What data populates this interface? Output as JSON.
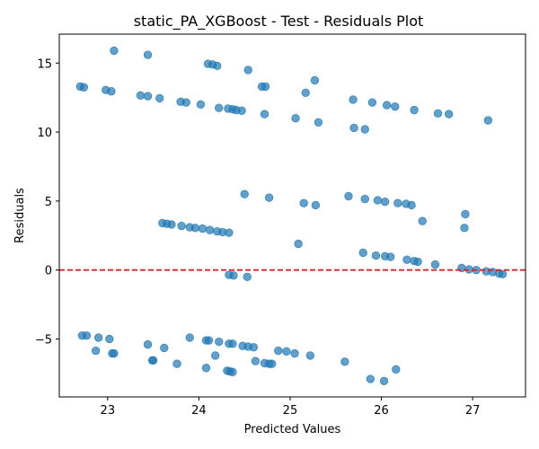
{
  "chart_data": {
    "type": "scatter",
    "title": "static_PA_XGBoost - Test - Residuals Plot",
    "xlabel": "Predicted Values",
    "ylabel": "Residuals",
    "xlim": [
      22.47,
      27.58
    ],
    "ylim": [
      -9.2,
      17.1
    ],
    "xticks": [
      23,
      24,
      25,
      26,
      27
    ],
    "yticks": [
      -5,
      0,
      5,
      10,
      15
    ],
    "grid": false,
    "point_color": "#1f77b4",
    "reference_line": {
      "y": 0,
      "color": "#d62728",
      "style": "dashed"
    },
    "points": [
      [
        23.07,
        15.9
      ],
      [
        23.44,
        15.6
      ],
      [
        24.1,
        14.95
      ],
      [
        24.15,
        14.9
      ],
      [
        24.2,
        14.8
      ],
      [
        24.54,
        14.5
      ],
      [
        25.27,
        13.75
      ],
      [
        22.7,
        13.3
      ],
      [
        22.74,
        13.25
      ],
      [
        24.69,
        13.3
      ],
      [
        24.73,
        13.3
      ],
      [
        22.98,
        13.05
      ],
      [
        23.04,
        12.95
      ],
      [
        25.17,
        12.85
      ],
      [
        23.36,
        12.65
      ],
      [
        23.44,
        12.6
      ],
      [
        23.57,
        12.45
      ],
      [
        23.8,
        12.2
      ],
      [
        23.86,
        12.15
      ],
      [
        24.02,
        12.0
      ],
      [
        24.22,
        11.75
      ],
      [
        24.32,
        11.7
      ],
      [
        24.37,
        11.65
      ],
      [
        24.41,
        11.6
      ],
      [
        24.47,
        11.55
      ],
      [
        24.72,
        11.3
      ],
      [
        25.06,
        11.0
      ],
      [
        25.31,
        10.7
      ],
      [
        25.69,
        12.35
      ],
      [
        25.9,
        12.15
      ],
      [
        26.06,
        11.95
      ],
      [
        26.15,
        11.85
      ],
      [
        26.36,
        11.6
      ],
      [
        26.62,
        11.35
      ],
      [
        26.74,
        11.3
      ],
      [
        27.17,
        10.85
      ],
      [
        25.7,
        10.3
      ],
      [
        25.82,
        10.2
      ],
      [
        24.5,
        5.5
      ],
      [
        24.77,
        5.25
      ],
      [
        25.15,
        4.85
      ],
      [
        25.28,
        4.7
      ],
      [
        25.64,
        5.35
      ],
      [
        25.82,
        5.15
      ],
      [
        25.96,
        5.05
      ],
      [
        26.04,
        4.95
      ],
      [
        26.18,
        4.85
      ],
      [
        26.27,
        4.8
      ],
      [
        26.33,
        4.7
      ],
      [
        26.45,
        3.55
      ],
      [
        26.92,
        4.05
      ],
      [
        26.91,
        3.05
      ],
      [
        23.6,
        3.4
      ],
      [
        23.65,
        3.35
      ],
      [
        23.7,
        3.3
      ],
      [
        23.81,
        3.2
      ],
      [
        23.9,
        3.1
      ],
      [
        23.96,
        3.05
      ],
      [
        24.04,
        3.0
      ],
      [
        24.12,
        2.9
      ],
      [
        24.2,
        2.8
      ],
      [
        24.26,
        2.75
      ],
      [
        24.33,
        2.7
      ],
      [
        25.09,
        1.9
      ],
      [
        25.8,
        1.25
      ],
      [
        25.94,
        1.05
      ],
      [
        26.04,
        1.0
      ],
      [
        26.1,
        0.95
      ],
      [
        26.28,
        0.75
      ],
      [
        26.36,
        0.65
      ],
      [
        26.4,
        0.6
      ],
      [
        26.59,
        0.4
      ],
      [
        26.88,
        0.15
      ],
      [
        26.96,
        0.05
      ],
      [
        27.04,
        0.0
      ],
      [
        27.15,
        -0.1
      ],
      [
        27.22,
        -0.15
      ],
      [
        27.29,
        -0.25
      ],
      [
        27.33,
        -0.3
      ],
      [
        24.33,
        -0.35
      ],
      [
        24.38,
        -0.4
      ],
      [
        24.53,
        -0.5
      ],
      [
        22.72,
        -4.75
      ],
      [
        22.77,
        -4.75
      ],
      [
        22.9,
        -4.9
      ],
      [
        23.02,
        -5.0
      ],
      [
        23.9,
        -4.9
      ],
      [
        24.08,
        -5.1
      ],
      [
        24.11,
        -5.1
      ],
      [
        24.22,
        -5.2
      ],
      [
        24.33,
        -5.35
      ],
      [
        24.37,
        -5.35
      ],
      [
        24.48,
        -5.5
      ],
      [
        24.54,
        -5.55
      ],
      [
        24.6,
        -5.6
      ],
      [
        23.44,
        -5.4
      ],
      [
        23.62,
        -5.65
      ],
      [
        22.87,
        -5.85
      ],
      [
        23.05,
        -6.05
      ],
      [
        23.07,
        -6.05
      ],
      [
        24.87,
        -5.85
      ],
      [
        24.96,
        -5.9
      ],
      [
        25.05,
        -6.05
      ],
      [
        25.22,
        -6.2
      ],
      [
        24.18,
        -6.2
      ],
      [
        23.49,
        -6.55
      ],
      [
        23.5,
        -6.55
      ],
      [
        23.76,
        -6.8
      ],
      [
        24.62,
        -6.6
      ],
      [
        24.72,
        -6.75
      ],
      [
        24.77,
        -6.8
      ],
      [
        24.8,
        -6.8
      ],
      [
        25.6,
        -6.65
      ],
      [
        24.08,
        -7.1
      ],
      [
        24.31,
        -7.3
      ],
      [
        24.34,
        -7.35
      ],
      [
        24.37,
        -7.4
      ],
      [
        26.16,
        -7.2
      ],
      [
        25.88,
        -7.9
      ],
      [
        26.03,
        -8.05
      ]
    ]
  }
}
